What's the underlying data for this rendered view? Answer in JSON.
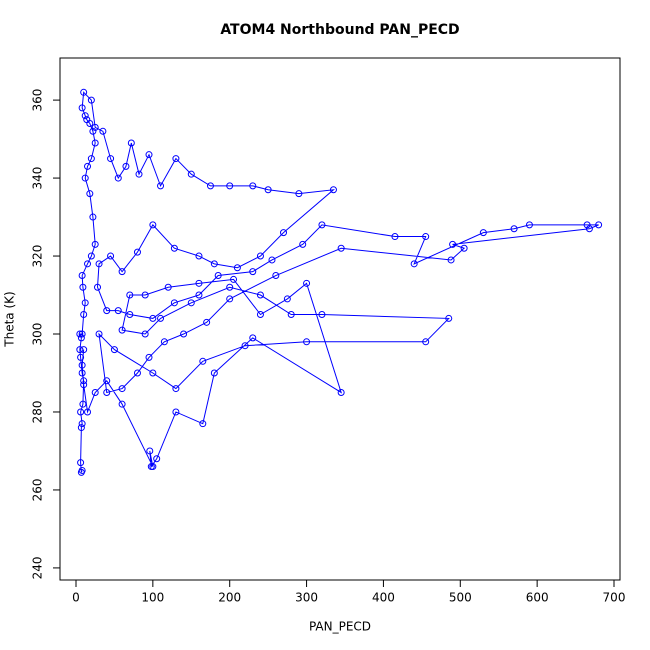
{
  "chart_data": {
    "type": "line",
    "title": "ATOM4 Northbound PAN_PECD",
    "x_label": "PAN_PECD",
    "y_label": "Theta (K)",
    "color": "#0000ff",
    "markers": "circle",
    "x": [
      8,
      7,
      6,
      7,
      8,
      6,
      9,
      10,
      8,
      6,
      5,
      7,
      5,
      8,
      10,
      12,
      9,
      8,
      15,
      20,
      25,
      22,
      18,
      12,
      15,
      20,
      25,
      22,
      18,
      14,
      12,
      8,
      10,
      20,
      25,
      35,
      45,
      55,
      65,
      72,
      82,
      95,
      110,
      130,
      150,
      175,
      200,
      230,
      250,
      290,
      335,
      270,
      240,
      210,
      180,
      160,
      128,
      100,
      80,
      60,
      45,
      30,
      28,
      40,
      55,
      70,
      100,
      128,
      160,
      185,
      230,
      255,
      295,
      320,
      415,
      455,
      440,
      530,
      570,
      590,
      665,
      680,
      668,
      490,
      505,
      488,
      345,
      260,
      200,
      170,
      140,
      115,
      95,
      80,
      60,
      40,
      30,
      50,
      100,
      130,
      165,
      220,
      300,
      455,
      485,
      320,
      280,
      240,
      200,
      150,
      110,
      90,
      60,
      70,
      90,
      120,
      160,
      205,
      240,
      275,
      300,
      345,
      230,
      180,
      165,
      130,
      105,
      98,
      96,
      100,
      60,
      40,
      25,
      15,
      10,
      8,
      10
    ],
    "values": [
      265,
      264.5,
      267,
      276,
      277,
      280,
      282,
      288,
      290,
      294,
      296,
      299,
      300,
      300,
      305,
      308,
      312,
      315,
      318,
      320,
      323,
      330,
      336,
      340,
      343,
      345,
      349,
      352,
      354,
      355,
      356,
      358,
      362,
      360,
      353,
      352,
      345,
      340,
      343,
      349,
      341,
      346,
      338,
      345,
      341,
      338,
      338,
      338,
      337,
      336,
      337,
      326,
      320,
      317,
      318,
      320,
      322,
      328,
      321,
      316,
      320,
      318,
      312,
      306,
      306,
      305,
      304,
      308,
      310,
      315,
      316,
      319,
      323,
      328,
      325,
      325,
      318,
      326,
      327,
      328,
      328,
      328,
      327,
      323,
      322,
      319,
      322,
      315,
      309,
      303,
      300,
      298,
      294,
      290,
      286,
      285,
      300,
      296,
      290,
      286,
      293,
      297,
      298,
      298,
      304,
      305,
      305,
      310,
      312,
      308,
      304,
      300,
      301,
      310,
      310,
      312,
      313,
      314,
      305,
      309,
      313,
      285,
      299,
      290,
      277,
      280,
      268,
      266,
      270,
      266,
      282,
      288,
      285,
      280,
      287,
      292,
      296
    ],
    "xlim": [
      -20.8,
      707.8
    ],
    "ylim": [
      236.9,
      370.8
    ],
    "xticks": [
      0,
      100,
      200,
      300,
      400,
      500,
      600,
      700
    ],
    "yticks": [
      240,
      260,
      280,
      300,
      320,
      340,
      360
    ]
  }
}
